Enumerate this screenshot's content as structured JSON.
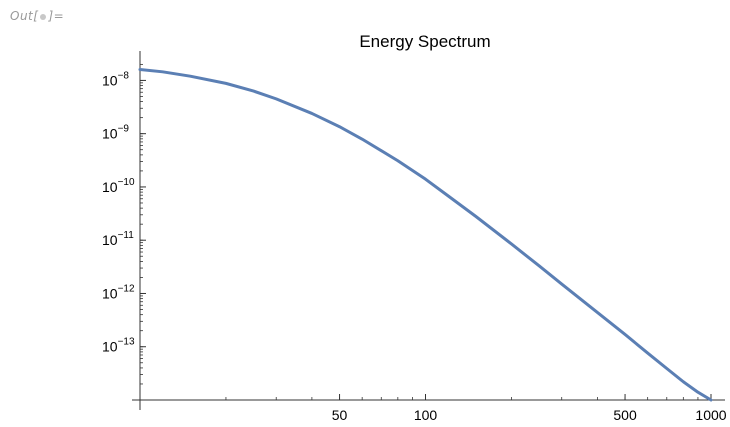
{
  "cell": {
    "out_prefix": "Out[",
    "out_suffix": "]="
  },
  "chart_data": {
    "type": "line",
    "title": "Energy Spectrum",
    "xlabel": "",
    "ylabel": "",
    "x_scale": "log",
    "y_scale": "log",
    "xlim": [
      10,
      1000
    ],
    "ylim": [
      1e-14,
      3e-08
    ],
    "grid": false,
    "legend": "none",
    "line_color": "#5b7fb4",
    "x_ticks": [
      {
        "value": 50,
        "label": "50"
      },
      {
        "value": 100,
        "label": "100"
      },
      {
        "value": 500,
        "label": "500"
      },
      {
        "value": 1000,
        "label": "1000"
      }
    ],
    "y_ticks": [
      {
        "value": 1e-08,
        "base": "10",
        "exp": "−8"
      },
      {
        "value": 1e-09,
        "base": "10",
        "exp": "−9"
      },
      {
        "value": 1e-10,
        "base": "10",
        "exp": "−10"
      },
      {
        "value": 1e-11,
        "base": "10",
        "exp": "−11"
      },
      {
        "value": 1e-12,
        "base": "10",
        "exp": "−12"
      },
      {
        "value": 1e-13,
        "base": "10",
        "exp": "−13"
      }
    ],
    "series": [
      {
        "x": [
          10,
          12,
          15,
          20,
          25,
          30,
          40,
          50,
          60,
          70,
          80,
          100,
          120,
          150,
          200,
          250,
          300,
          400,
          500,
          600,
          700,
          800,
          900,
          1000
        ],
        "y": [
          1.6e-08,
          1.45e-08,
          1.2e-08,
          8.8e-09,
          6.3e-09,
          4.5e-09,
          2.4e-09,
          1.35e-09,
          7.9e-10,
          4.8e-10,
          3.1e-10,
          1.4e-10,
          6.8e-11,
          2.8e-11,
          8.5e-12,
          3.3e-12,
          1.5e-12,
          4.4e-13,
          1.7e-13,
          7.6e-14,
          3.9e-14,
          2.2e-14,
          1.4e-14,
          1e-14
        ]
      }
    ]
  }
}
